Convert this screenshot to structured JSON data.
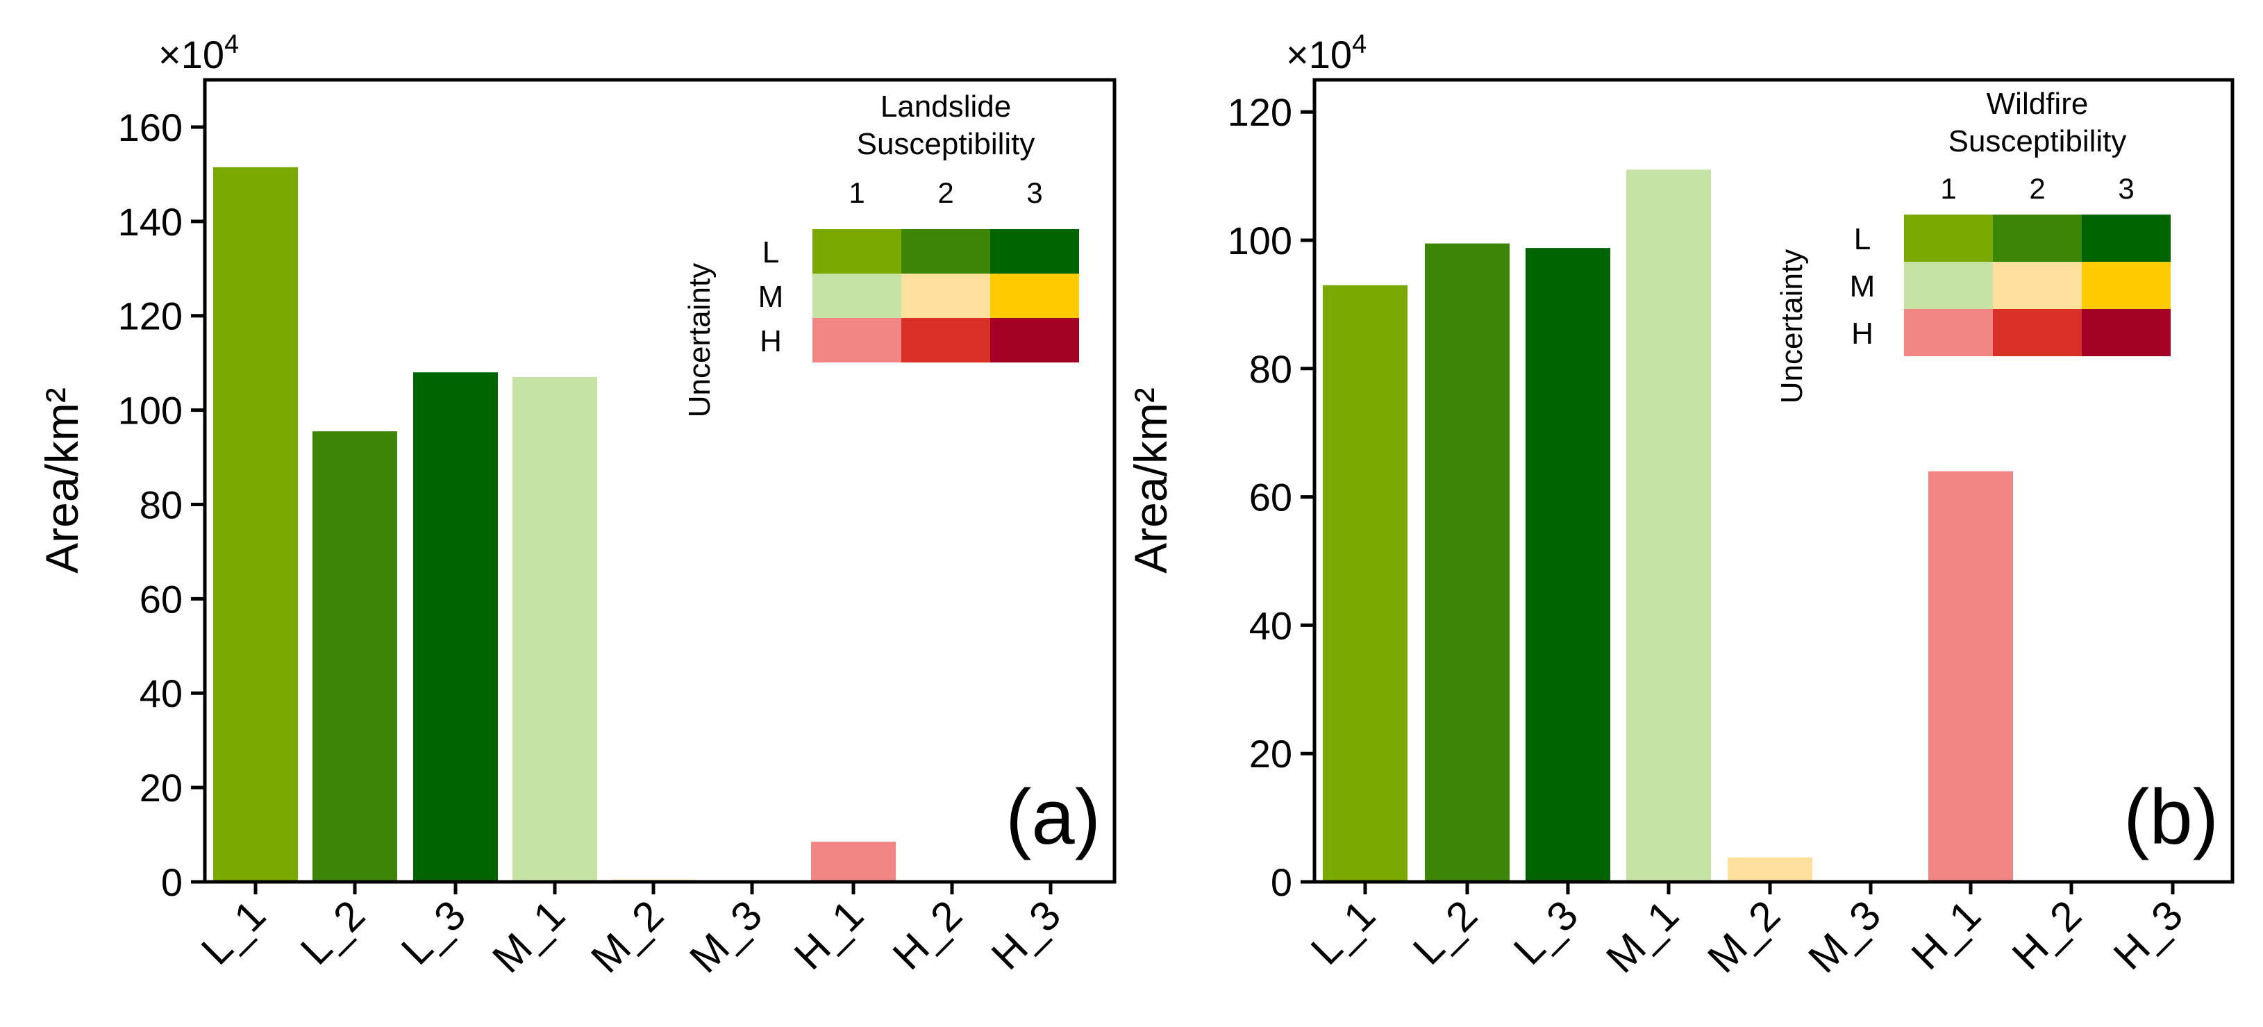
{
  "chart_data": [
    {
      "type": "bar",
      "panel_label": "(a)",
      "multiplier": "×10",
      "multiplier_exp": "4",
      "ylabel": "Area/km²",
      "ylim": [
        0,
        170
      ],
      "yticks": [
        0,
        20,
        40,
        60,
        80,
        100,
        120,
        140,
        160
      ],
      "categories": [
        "L_1",
        "L_2",
        "L_3",
        "M_1",
        "M_2",
        "M_3",
        "H_1",
        "H_2",
        "H_3"
      ],
      "values": [
        151.5,
        95.5,
        108,
        107,
        0.5,
        0.2,
        8.5,
        0.1,
        0.1
      ],
      "colors": [
        "#7aaa02",
        "#3d8506",
        "#006400",
        "#c7e2a5",
        "#fde09c",
        "#ffcc00",
        "#f08583",
        "#d93127",
        "#a50026"
      ],
      "legend": {
        "title_line1": "Landslide",
        "title_line2": "Susceptibility",
        "columns": [
          "1",
          "2",
          "3"
        ],
        "rows": [
          "L",
          "M",
          "H"
        ],
        "row_axis_label": "Uncertainty"
      }
    },
    {
      "type": "bar",
      "panel_label": "(b)",
      "multiplier": "×10",
      "multiplier_exp": "4",
      "ylabel": "Area/km²",
      "ylim": [
        0,
        125
      ],
      "yticks": [
        0,
        20,
        40,
        60,
        80,
        100,
        120
      ],
      "categories": [
        "L_1",
        "L_2",
        "L_3",
        "M_1",
        "M_2",
        "M_3",
        "H_1",
        "H_2",
        "H_3"
      ],
      "values": [
        93,
        99.5,
        98.8,
        111,
        3.8,
        0.1,
        64,
        0.1,
        0.1
      ],
      "colors": [
        "#7aaa02",
        "#3d8506",
        "#006400",
        "#c7e2a5",
        "#fde09c",
        "#ffcc00",
        "#f08583",
        "#d93127",
        "#a50026"
      ],
      "legend": {
        "title_line1": "Wildfire",
        "title_line2": "Susceptibility",
        "columns": [
          "1",
          "2",
          "3"
        ],
        "rows": [
          "L",
          "M",
          "H"
        ],
        "row_axis_label": "Uncertainty"
      }
    }
  ]
}
